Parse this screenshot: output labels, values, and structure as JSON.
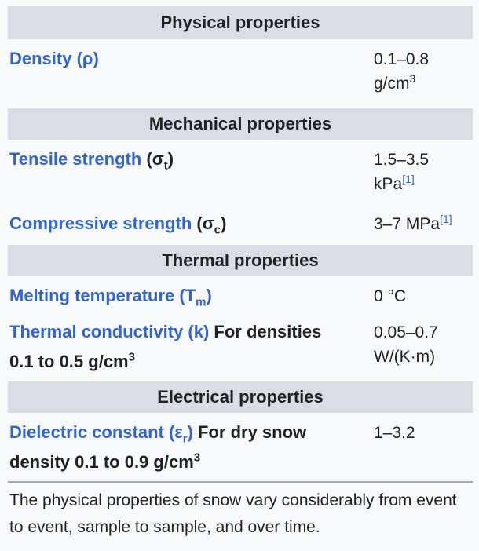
{
  "sections": {
    "physical": {
      "title": "Physical properties"
    },
    "mechanical": {
      "title": "Mechanical properties"
    },
    "thermal": {
      "title": "Thermal properties"
    },
    "electrical": {
      "title": "Electrical properties"
    }
  },
  "rows": {
    "density": {
      "label": "Density (ρ)",
      "value_1": "0.1–0.8",
      "value_2": "g/cm",
      "value_sup": "3"
    },
    "tensile": {
      "label_link": "Tensile strength",
      "label_paren_open": " (σ",
      "label_sub": "t",
      "label_paren_close": ")",
      "value_1": "1.5–3.5",
      "value_2": "kPa",
      "ref": "[1]"
    },
    "compressive": {
      "label_link": "Compressive strength",
      "label_paren_open": " (σ",
      "label_sub": "c",
      "label_paren_close": ")",
      "value": "3–7 MPa",
      "ref": "[1]"
    },
    "melting": {
      "label_link": "Melting temperature",
      "label_paren_open": " (T",
      "label_sub": "m",
      "label_paren_close": ")",
      "value": "0 °C"
    },
    "conductivity": {
      "label_link": "Thermal conductivity (k)",
      "note_1": " For densities",
      "note_2": "0.1 to 0.5 g/cm",
      "note_sup": "3",
      "value_1": "0.05–0.7",
      "value_2": "W/(K·m)"
    },
    "dielectric": {
      "label_link_pre": "Dielectric constant (ε",
      "label_sub": "r",
      "label_link_post": ")",
      "note_1": " For dry snow",
      "note_2": "density 0.1 to 0.9 g/cm",
      "note_sup": "3",
      "value": "1–3.2"
    }
  },
  "caption": "The physical properties of snow vary considerably from event to event, sample to sample, and over time.",
  "colors": {
    "link": "#3366cc",
    "header_bg": "#dadde3",
    "background": "#f8f9fa",
    "text": "#202122"
  }
}
